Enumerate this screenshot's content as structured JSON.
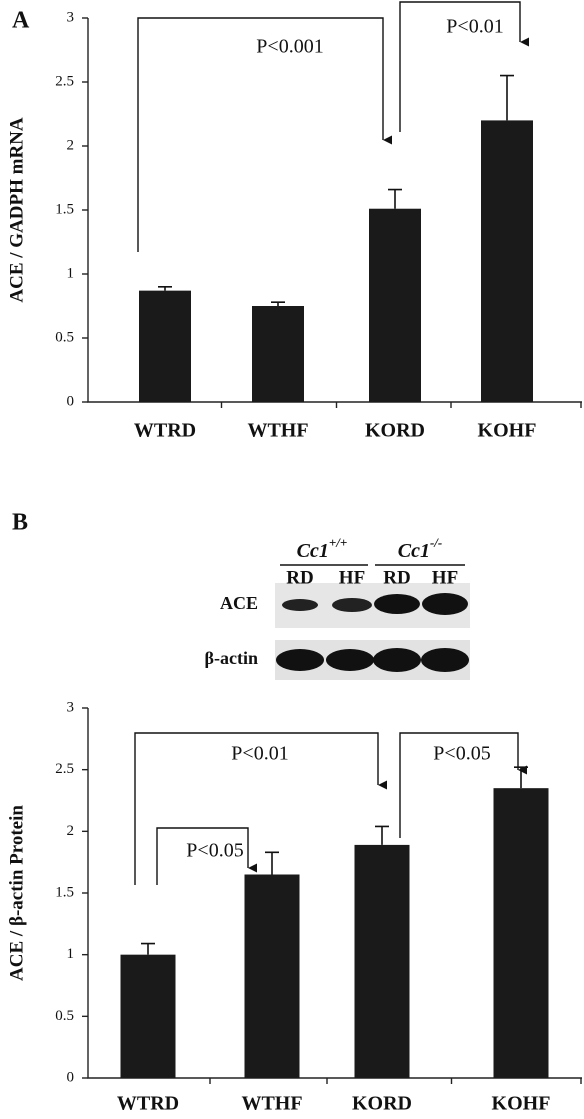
{
  "chart_data": [
    {
      "type": "bar",
      "panel": "A",
      "ylabel": "ACE / GADPH mRNA",
      "categories": [
        "WTRD",
        "WTHF",
        "KORD",
        "KOHF"
      ],
      "values": [
        0.87,
        0.75,
        1.51,
        2.2
      ],
      "errors": [
        0.03,
        0.03,
        0.15,
        0.35
      ],
      "color": "#1a1a1a",
      "ylim": [
        0,
        3
      ],
      "yticks": [
        0,
        0.5,
        1,
        1.5,
        2,
        2.5,
        3
      ],
      "annotations": [
        {
          "text": "P<0.001",
          "from": "WTRD",
          "to": "KORD"
        },
        {
          "text": "P<0.01",
          "from": "KORD",
          "to": "KOHF"
        }
      ]
    },
    {
      "type": "bar",
      "panel": "B",
      "ylabel": "ACE / β-actin Protein",
      "categories": [
        "WTRD",
        "WTHF",
        "KORD",
        "KOHF"
      ],
      "values": [
        1.0,
        1.65,
        1.89,
        2.35
      ],
      "errors": [
        0.09,
        0.18,
        0.15,
        0.17
      ],
      "color": "#1a1a1a",
      "ylim": [
        0,
        3
      ],
      "yticks": [
        0,
        0.5,
        1,
        1.5,
        2,
        2.5,
        3
      ],
      "annotations": [
        {
          "text": "P<0.01",
          "from": "WTRD",
          "to": "KORD"
        },
        {
          "text": "P<0.05",
          "from": "WTRD",
          "to": "WTHF"
        },
        {
          "text": "P<0.05",
          "from": "KORD",
          "to": "KOHF"
        }
      ]
    }
  ],
  "blot": {
    "groups": [
      {
        "text": "Cc1",
        "sup": "+/+"
      },
      {
        "text": "Cc1",
        "sup": "-/-"
      }
    ],
    "lanes": [
      "RD",
      "HF",
      "RD",
      "HF"
    ],
    "rows": [
      "ACE",
      "β-actin"
    ]
  }
}
